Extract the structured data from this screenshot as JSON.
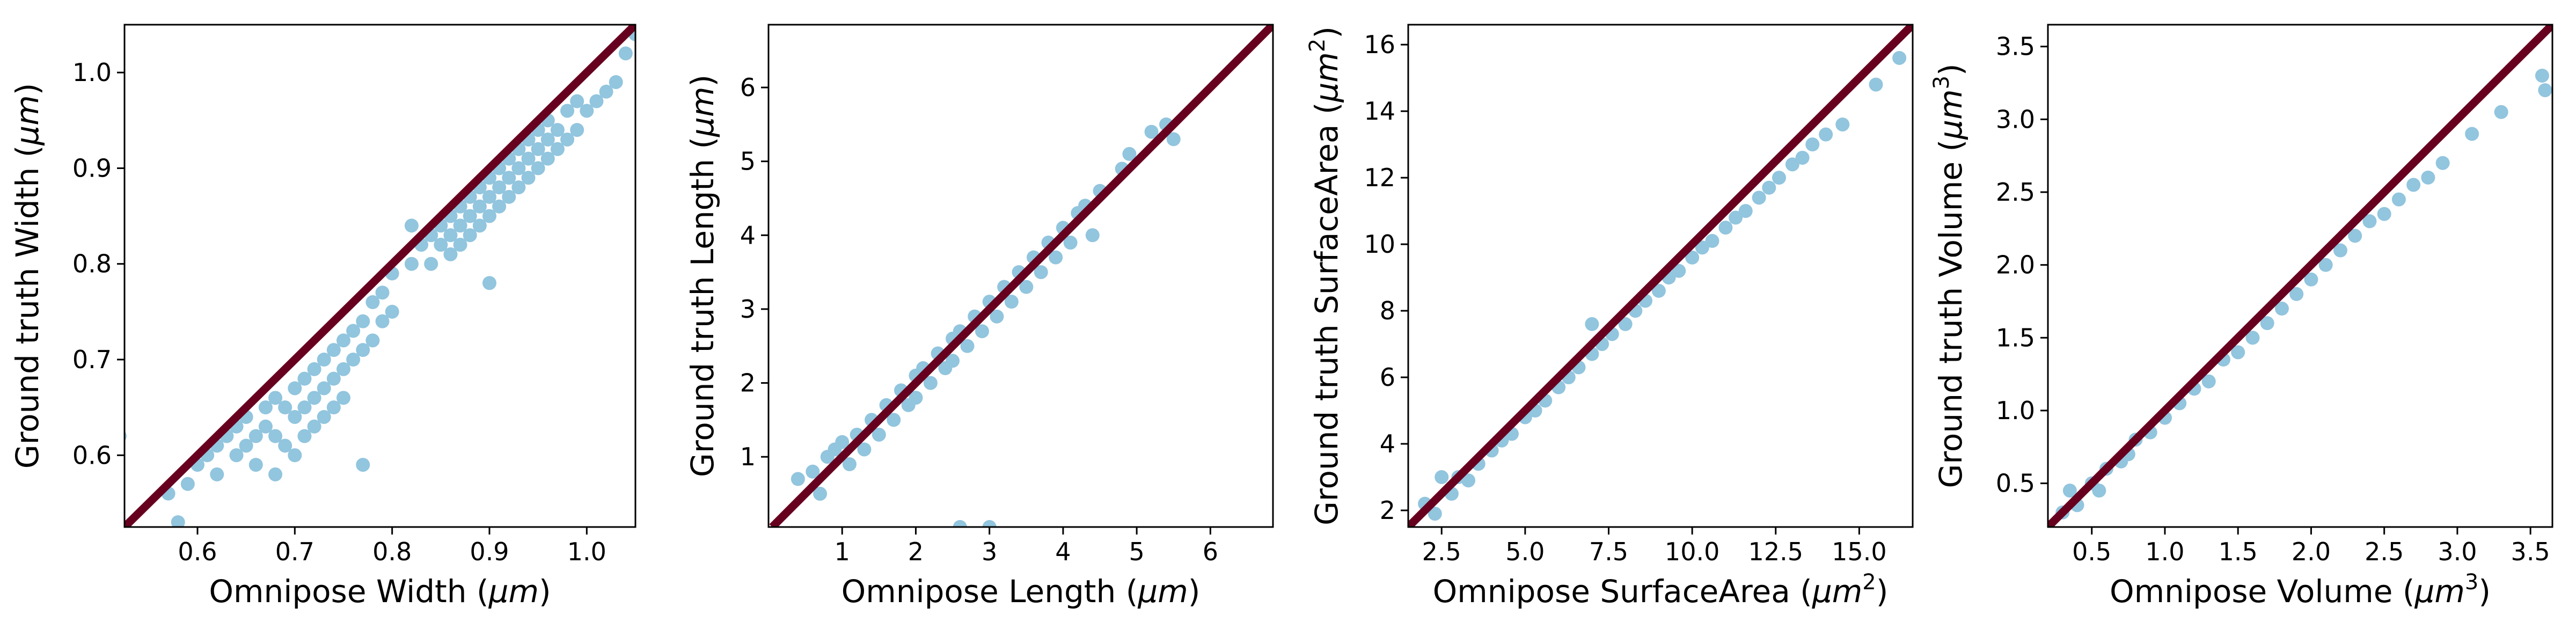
{
  "colors": {
    "points": "#92c5de",
    "identity_line": "#67001f"
  },
  "chart_data": [
    {
      "type": "scatter",
      "xlabel": "Omnipose Width",
      "xunit": "μm",
      "xunit_sup": "",
      "ylabel": "Ground truth Width",
      "yunit": "μm",
      "yunit_sup": "",
      "xlim": [
        0.525,
        1.05
      ],
      "ylim": [
        0.525,
        1.05
      ],
      "xticks": [
        0.6,
        0.7,
        0.8,
        0.9,
        1.0
      ],
      "xtick_labels": [
        "0.6",
        "0.7",
        "0.8",
        "0.9",
        "1.0"
      ],
      "yticks": [
        0.6,
        0.7,
        0.8,
        0.9,
        1.0
      ],
      "ytick_labels": [
        "0.6",
        "0.7",
        "0.8",
        "0.9",
        "1.0"
      ],
      "reference_line": "y = x",
      "points": [
        [
          0.52,
          0.62
        ],
        [
          0.57,
          0.56
        ],
        [
          0.58,
          0.53
        ],
        [
          0.59,
          0.57
        ],
        [
          0.6,
          0.59
        ],
        [
          0.61,
          0.6
        ],
        [
          0.62,
          0.61
        ],
        [
          0.62,
          0.58
        ],
        [
          0.63,
          0.62
        ],
        [
          0.64,
          0.63
        ],
        [
          0.64,
          0.6
        ],
        [
          0.65,
          0.64
        ],
        [
          0.65,
          0.61
        ],
        [
          0.66,
          0.62
        ],
        [
          0.66,
          0.59
        ],
        [
          0.67,
          0.65
        ],
        [
          0.67,
          0.63
        ],
        [
          0.68,
          0.66
        ],
        [
          0.68,
          0.62
        ],
        [
          0.68,
          0.58
        ],
        [
          0.69,
          0.65
        ],
        [
          0.69,
          0.61
        ],
        [
          0.7,
          0.67
        ],
        [
          0.7,
          0.64
        ],
        [
          0.7,
          0.6
        ],
        [
          0.71,
          0.68
        ],
        [
          0.71,
          0.65
        ],
        [
          0.71,
          0.62
        ],
        [
          0.72,
          0.69
        ],
        [
          0.72,
          0.66
        ],
        [
          0.72,
          0.63
        ],
        [
          0.73,
          0.7
        ],
        [
          0.73,
          0.67
        ],
        [
          0.73,
          0.64
        ],
        [
          0.74,
          0.71
        ],
        [
          0.74,
          0.68
        ],
        [
          0.74,
          0.65
        ],
        [
          0.75,
          0.72
        ],
        [
          0.75,
          0.69
        ],
        [
          0.75,
          0.66
        ],
        [
          0.76,
          0.73
        ],
        [
          0.76,
          0.7
        ],
        [
          0.77,
          0.74
        ],
        [
          0.77,
          0.71
        ],
        [
          0.77,
          0.59
        ],
        [
          0.78,
          0.76
        ],
        [
          0.78,
          0.72
        ],
        [
          0.79,
          0.77
        ],
        [
          0.79,
          0.74
        ],
        [
          0.8,
          0.79
        ],
        [
          0.8,
          0.75
        ],
        [
          0.82,
          0.84
        ],
        [
          0.82,
          0.8
        ],
        [
          0.83,
          0.82
        ],
        [
          0.84,
          0.83
        ],
        [
          0.84,
          0.8
        ],
        [
          0.85,
          0.84
        ],
        [
          0.85,
          0.82
        ],
        [
          0.86,
          0.85
        ],
        [
          0.86,
          0.83
        ],
        [
          0.86,
          0.81
        ],
        [
          0.87,
          0.86
        ],
        [
          0.87,
          0.84
        ],
        [
          0.87,
          0.82
        ],
        [
          0.88,
          0.87
        ],
        [
          0.88,
          0.85
        ],
        [
          0.88,
          0.83
        ],
        [
          0.89,
          0.88
        ],
        [
          0.89,
          0.86
        ],
        [
          0.89,
          0.84
        ],
        [
          0.9,
          0.89
        ],
        [
          0.9,
          0.87
        ],
        [
          0.9,
          0.85
        ],
        [
          0.9,
          0.78
        ],
        [
          0.91,
          0.9
        ],
        [
          0.91,
          0.88
        ],
        [
          0.91,
          0.86
        ],
        [
          0.92,
          0.91
        ],
        [
          0.92,
          0.89
        ],
        [
          0.92,
          0.87
        ],
        [
          0.93,
          0.92
        ],
        [
          0.93,
          0.9
        ],
        [
          0.93,
          0.88
        ],
        [
          0.94,
          0.93
        ],
        [
          0.94,
          0.91
        ],
        [
          0.94,
          0.89
        ],
        [
          0.95,
          0.94
        ],
        [
          0.95,
          0.92
        ],
        [
          0.95,
          0.9
        ],
        [
          0.96,
          0.95
        ],
        [
          0.96,
          0.93
        ],
        [
          0.96,
          0.91
        ],
        [
          0.97,
          0.94
        ],
        [
          0.97,
          0.92
        ],
        [
          0.98,
          0.96
        ],
        [
          0.98,
          0.93
        ],
        [
          0.99,
          0.97
        ],
        [
          0.99,
          0.94
        ],
        [
          1.0,
          0.96
        ],
        [
          1.01,
          0.97
        ],
        [
          1.02,
          0.98
        ],
        [
          1.03,
          0.99
        ],
        [
          1.04,
          1.02
        ],
        [
          1.05,
          1.04
        ]
      ]
    },
    {
      "type": "scatter",
      "xlabel": "Omnipose Length",
      "xunit": "μm",
      "xunit_sup": "",
      "ylabel": "Ground truth Length",
      "yunit": "μm",
      "yunit_sup": "",
      "xlim": [
        0.0,
        6.85
      ],
      "ylim": [
        0.05,
        6.85
      ],
      "xticks": [
        1,
        2,
        3,
        4,
        5,
        6
      ],
      "xtick_labels": [
        "1",
        "2",
        "3",
        "4",
        "5",
        "6"
      ],
      "yticks": [
        1,
        2,
        3,
        4,
        5,
        6
      ],
      "ytick_labels": [
        "1",
        "2",
        "3",
        "4",
        "5",
        "6"
      ],
      "reference_line": "y = x",
      "points": [
        [
          0.4,
          0.7
        ],
        [
          0.6,
          0.8
        ],
        [
          0.7,
          0.5
        ],
        [
          0.8,
          1.0
        ],
        [
          0.9,
          1.1
        ],
        [
          1.0,
          1.2
        ],
        [
          1.1,
          0.9
        ],
        [
          1.2,
          1.3
        ],
        [
          1.3,
          1.1
        ],
        [
          1.4,
          1.5
        ],
        [
          1.5,
          1.3
        ],
        [
          1.6,
          1.7
        ],
        [
          1.7,
          1.5
        ],
        [
          1.8,
          1.9
        ],
        [
          1.9,
          1.7
        ],
        [
          2.0,
          2.1
        ],
        [
          2.0,
          1.8
        ],
        [
          2.1,
          2.2
        ],
        [
          2.2,
          2.0
        ],
        [
          2.3,
          2.4
        ],
        [
          2.4,
          2.2
        ],
        [
          2.5,
          2.6
        ],
        [
          2.5,
          2.3
        ],
        [
          2.6,
          2.7
        ],
        [
          2.7,
          2.5
        ],
        [
          2.6,
          0.05
        ],
        [
          2.8,
          2.9
        ],
        [
          2.9,
          2.7
        ],
        [
          3.0,
          3.1
        ],
        [
          3.0,
          0.05
        ],
        [
          3.1,
          2.9
        ],
        [
          3.2,
          3.3
        ],
        [
          3.3,
          3.1
        ],
        [
          3.4,
          3.5
        ],
        [
          3.5,
          3.3
        ],
        [
          3.6,
          3.7
        ],
        [
          3.7,
          3.5
        ],
        [
          3.8,
          3.9
        ],
        [
          3.9,
          3.7
        ],
        [
          4.0,
          4.1
        ],
        [
          4.1,
          3.9
        ],
        [
          4.2,
          4.3
        ],
        [
          4.3,
          4.4
        ],
        [
          4.4,
          4.0
        ],
        [
          4.5,
          4.6
        ],
        [
          4.8,
          4.9
        ],
        [
          4.9,
          5.1
        ],
        [
          5.2,
          5.4
        ],
        [
          5.4,
          5.5
        ],
        [
          5.5,
          5.3
        ]
      ]
    },
    {
      "type": "scatter",
      "xlabel": "Omnipose SurfaceArea",
      "xunit": "μm",
      "xunit_sup": "2",
      "ylabel": "Ground truth SurfaceArea",
      "yunit": "μm",
      "yunit_sup": "2",
      "xlim": [
        1.5,
        16.6
      ],
      "ylim": [
        1.5,
        16.6
      ],
      "xticks": [
        2.5,
        5.0,
        7.5,
        10.0,
        12.5,
        15.0
      ],
      "xtick_labels": [
        "2.5",
        "5.0",
        "7.5",
        "10.0",
        "12.5",
        "15.0"
      ],
      "yticks": [
        2,
        4,
        6,
        8,
        10,
        12,
        14,
        16
      ],
      "ytick_labels": [
        "2",
        "4",
        "6",
        "8",
        "10",
        "12",
        "14",
        "16"
      ],
      "reference_line": "y = x",
      "points": [
        [
          2.0,
          2.2
        ],
        [
          2.3,
          1.9
        ],
        [
          2.5,
          3.0
        ],
        [
          2.8,
          2.5
        ],
        [
          3.0,
          3.0
        ],
        [
          3.3,
          2.9
        ],
        [
          3.6,
          3.4
        ],
        [
          4.0,
          3.8
        ],
        [
          4.3,
          4.1
        ],
        [
          4.6,
          4.3
        ],
        [
          5.0,
          4.8
        ],
        [
          5.3,
          5.0
        ],
        [
          5.6,
          5.3
        ],
        [
          6.0,
          5.7
        ],
        [
          6.3,
          6.0
        ],
        [
          6.6,
          6.3
        ],
        [
          7.0,
          6.7
        ],
        [
          7.0,
          7.6
        ],
        [
          7.3,
          7.0
        ],
        [
          7.6,
          7.3
        ],
        [
          8.0,
          7.6
        ],
        [
          8.3,
          8.0
        ],
        [
          8.6,
          8.3
        ],
        [
          9.0,
          8.6
        ],
        [
          9.3,
          9.0
        ],
        [
          9.6,
          9.2
        ],
        [
          10.0,
          9.6
        ],
        [
          10.3,
          9.9
        ],
        [
          10.6,
          10.1
        ],
        [
          11.0,
          10.5
        ],
        [
          11.3,
          10.8
        ],
        [
          11.6,
          11.0
        ],
        [
          12.0,
          11.4
        ],
        [
          12.3,
          11.7
        ],
        [
          12.6,
          12.0
        ],
        [
          13.0,
          12.4
        ],
        [
          13.3,
          12.6
        ],
        [
          13.6,
          13.0
        ],
        [
          14.0,
          13.3
        ],
        [
          14.5,
          13.6
        ],
        [
          15.5,
          14.8
        ],
        [
          16.2,
          15.6
        ]
      ]
    },
    {
      "type": "scatter",
      "xlabel": "Omnipose Volume",
      "xunit": "μm",
      "xunit_sup": "3",
      "ylabel": "Ground truth Volume",
      "yunit": "μm",
      "yunit_sup": "3",
      "xlim": [
        0.2,
        3.65
      ],
      "ylim": [
        0.2,
        3.65
      ],
      "xticks": [
        0.5,
        1.0,
        1.5,
        2.0,
        2.5,
        3.0,
        3.5
      ],
      "xtick_labels": [
        "0.5",
        "1.0",
        "1.5",
        "2.0",
        "2.5",
        "3.0",
        "3.5"
      ],
      "yticks": [
        0.5,
        1.0,
        1.5,
        2.0,
        2.5,
        3.0,
        3.5
      ],
      "ytick_labels": [
        "0.5",
        "1.0",
        "1.5",
        "2.0",
        "2.5",
        "3.0",
        "3.5"
      ],
      "reference_line": "y = x",
      "points": [
        [
          0.3,
          0.3
        ],
        [
          0.35,
          0.45
        ],
        [
          0.4,
          0.35
        ],
        [
          0.5,
          0.5
        ],
        [
          0.55,
          0.45
        ],
        [
          0.6,
          0.6
        ],
        [
          0.7,
          0.65
        ],
        [
          0.75,
          0.7
        ],
        [
          0.8,
          0.8
        ],
        [
          0.9,
          0.85
        ],
        [
          1.0,
          0.95
        ],
        [
          1.1,
          1.05
        ],
        [
          1.2,
          1.15
        ],
        [
          1.3,
          1.2
        ],
        [
          1.4,
          1.35
        ],
        [
          1.5,
          1.4
        ],
        [
          1.6,
          1.5
        ],
        [
          1.7,
          1.6
        ],
        [
          1.8,
          1.7
        ],
        [
          1.9,
          1.8
        ],
        [
          2.0,
          1.9
        ],
        [
          2.1,
          2.0
        ],
        [
          2.2,
          2.1
        ],
        [
          2.3,
          2.2
        ],
        [
          2.4,
          2.3
        ],
        [
          2.5,
          2.35
        ],
        [
          2.6,
          2.45
        ],
        [
          2.7,
          2.55
        ],
        [
          2.8,
          2.6
        ],
        [
          2.9,
          2.7
        ],
        [
          3.1,
          2.9
        ],
        [
          3.3,
          3.05
        ],
        [
          3.58,
          3.3
        ],
        [
          3.6,
          3.2
        ]
      ]
    }
  ]
}
